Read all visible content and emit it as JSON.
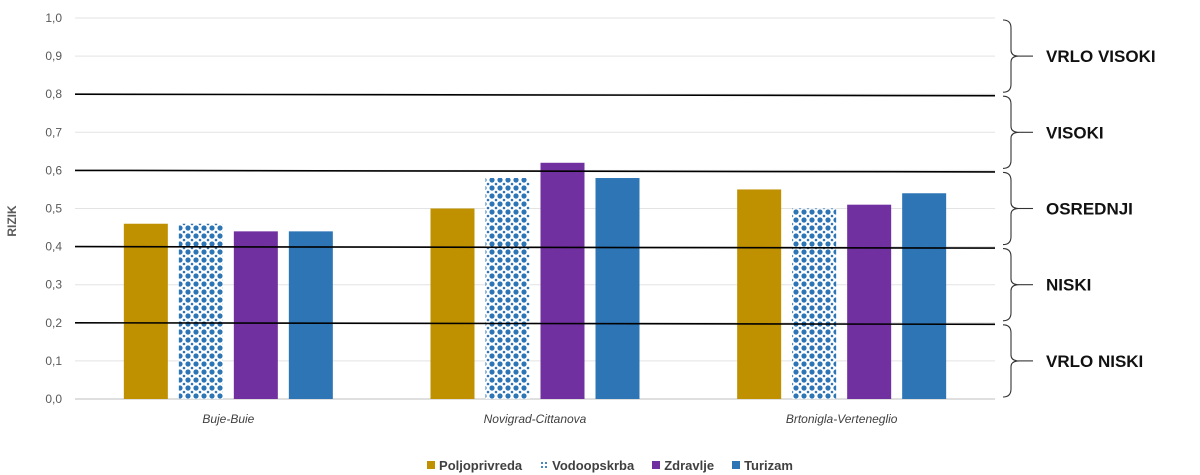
{
  "chart_data": {
    "type": "bar",
    "ylabel": "RIZIK",
    "xlabel": "",
    "ylim": [
      0,
      1.0
    ],
    "yticks": [
      "0,0",
      "0,1",
      "0,2",
      "0,3",
      "0,4",
      "0,5",
      "0,6",
      "0,7",
      "0,8",
      "0,9",
      "1,0"
    ],
    "categories": [
      "Buje-Buie",
      "Novigrad-Cittanova",
      "Brtonigla-Verteneglio"
    ],
    "series": [
      {
        "name": "Poljoprivreda",
        "values": [
          0.46,
          0.5,
          0.55
        ],
        "color": "#bf9000",
        "pattern": "solid"
      },
      {
        "name": "Vodoopskrba",
        "values": [
          0.46,
          0.58,
          0.5
        ],
        "color": "#2e75b6",
        "pattern": "dotted"
      },
      {
        "name": "Zdravlje",
        "values": [
          0.44,
          0.62,
          0.51
        ],
        "color": "#7030a0",
        "pattern": "solid"
      },
      {
        "name": "Turizam",
        "values": [
          0.44,
          0.58,
          0.54
        ],
        "color": "#2e75b6",
        "pattern": "solid"
      }
    ],
    "thresholds": [
      0.2,
      0.4,
      0.6,
      0.8
    ],
    "risk_bands": [
      {
        "label": "VRLO VISOKI",
        "from": 0.8,
        "to": 1.0
      },
      {
        "label": "VISOKI",
        "from": 0.6,
        "to": 0.8
      },
      {
        "label": "OSREDNJI",
        "from": 0.4,
        "to": 0.6
      },
      {
        "label": "NISKI",
        "from": 0.2,
        "to": 0.4
      },
      {
        "label": "VRLO NISKI",
        "from": 0.0,
        "to": 0.2
      }
    ],
    "grid": true,
    "legend_position": "bottom"
  }
}
